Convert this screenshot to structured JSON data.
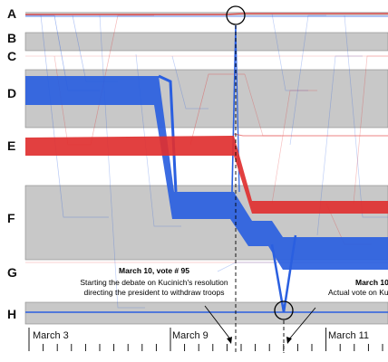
{
  "rows": [
    "A",
    "B",
    "C",
    "D",
    "E",
    "F",
    "G",
    "H"
  ],
  "annotations": {
    "left": {
      "title": "March 10, vote # 95",
      "lines": [
        "Starting the debate on Kucinich's resolution",
        "directing the president to withdraw troops"
      ]
    },
    "right": {
      "title": "March 10,",
      "lines": [
        "Actual vote on Ku"
      ]
    }
  },
  "axis": {
    "labels": [
      "March 3",
      "March 9",
      "March 11"
    ]
  },
  "colors": {
    "band": "#c8c8c8",
    "blue": "#2a5fe0",
    "red": "#e03030"
  }
}
